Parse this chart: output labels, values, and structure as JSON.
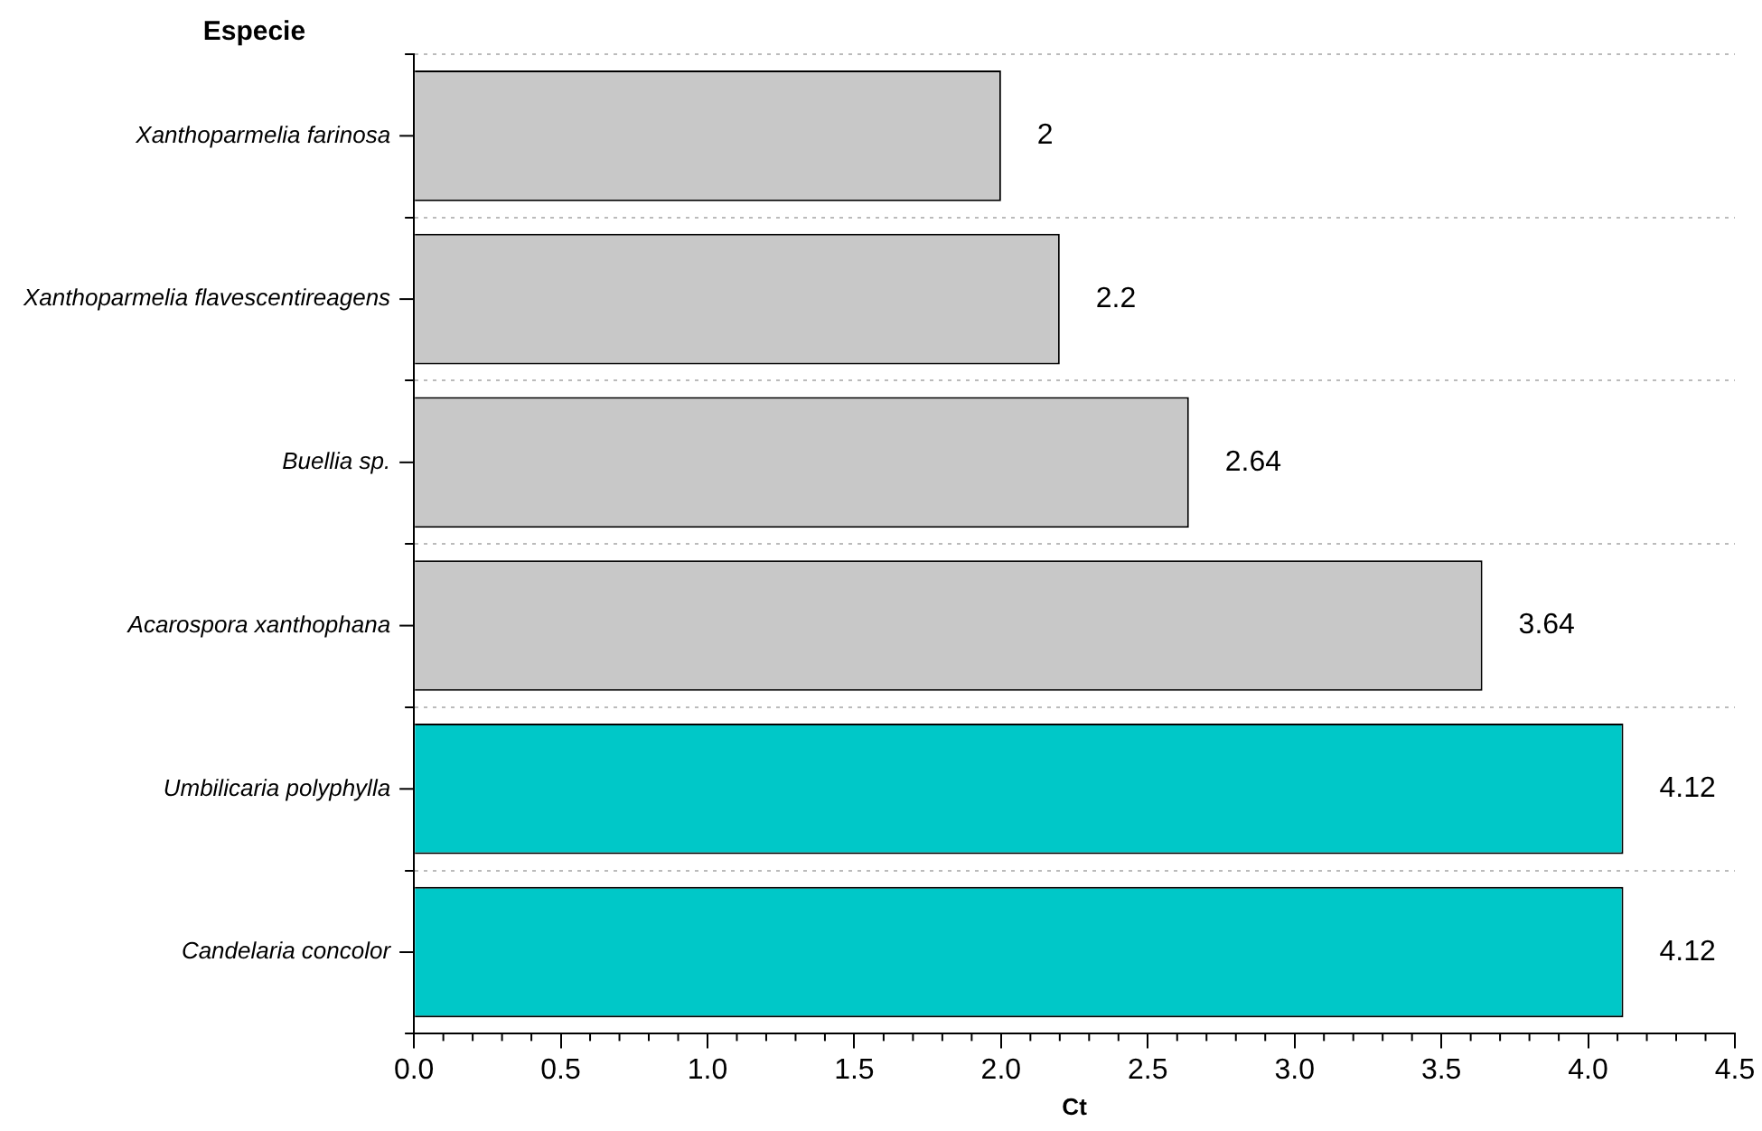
{
  "chart_data": {
    "type": "bar",
    "orientation": "horizontal",
    "ylabel": "Especie",
    "xlabel": "Ct",
    "categories": [
      "Xanthoparmelia farinosa",
      "Xanthoparmelia flavescentireagens",
      "Buellia sp.",
      "Acarospora xanthophana",
      "Umbilicaria polyphylla",
      "Candelaria concolor"
    ],
    "values": [
      2,
      2.2,
      2.64,
      3.64,
      4.12,
      4.12
    ],
    "colors": [
      "#c8c8c8",
      "#c8c8c8",
      "#c8c8c8",
      "#c8c8c8",
      "#00c8c8",
      "#00c8c8"
    ],
    "xlim": [
      0,
      4.5
    ],
    "xticks": [
      {
        "value": 0,
        "label": "0.0"
      },
      0.5,
      {
        "value": 1,
        "label": "1.0"
      },
      1.5,
      {
        "value": 2,
        "label": "2.0"
      },
      2.5,
      {
        "value": 3,
        "label": "3.0"
      },
      3.5,
      {
        "value": 4,
        "label": "4.0"
      },
      4.5
    ],
    "data_labels": true,
    "grid": "y",
    "legend": false
  }
}
